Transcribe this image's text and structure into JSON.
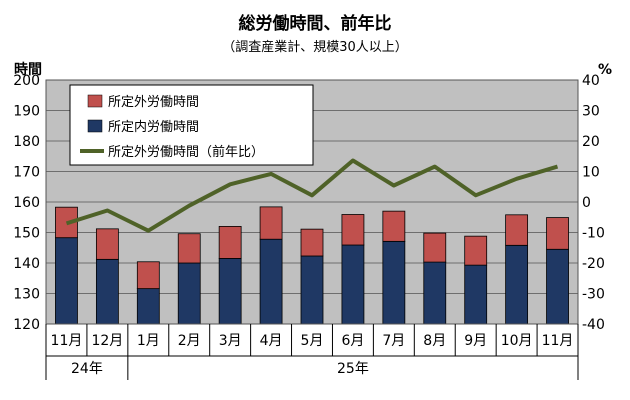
{
  "chart_data": {
    "type": "bar",
    "title": "総労働時間、前年比",
    "subtitle": "（調査産業計、規模30人以上）",
    "ylabel_left": "時間",
    "ylabel_right": "%",
    "ylim_left": [
      120,
      200
    ],
    "ylim_right": [
      -40,
      40
    ],
    "yticks_left": [
      "120",
      "130",
      "140",
      "150",
      "160",
      "170",
      "180",
      "190",
      "200"
    ],
    "yticks_right": [
      "-40",
      "-30",
      "-20",
      "-10",
      "0",
      "10",
      "20",
      "30",
      "40"
    ],
    "grid": true,
    "legend_position": "top-left",
    "categories": [
      "11月",
      "12月",
      "1月",
      "2月",
      "3月",
      "4月",
      "5月",
      "6月",
      "7月",
      "8月",
      "9月",
      "10月",
      "11月"
    ],
    "year_groups": [
      {
        "label": "24年",
        "span": 2
      },
      {
        "label": "25年",
        "span": 11
      }
    ],
    "series": [
      {
        "name": "所定外労働時間",
        "kind": "bar-stack-top",
        "axis": "left",
        "color": "#c0504d",
        "values": [
          10.0,
          10.0,
          8.8,
          9.6,
          10.5,
          10.6,
          8.8,
          10.0,
          9.9,
          9.5,
          9.5,
          10.0,
          10.4
        ]
      },
      {
        "name": "所定内労働時間",
        "kind": "bar-stack-bottom",
        "axis": "left",
        "color": "#1f3864",
        "values": [
          148.3,
          141.2,
          131.6,
          140.0,
          141.5,
          147.8,
          142.3,
          145.9,
          147.1,
          140.3,
          139.3,
          145.8,
          144.5
        ]
      },
      {
        "name": "所定外労働時間（前年比）",
        "kind": "line",
        "axis": "right",
        "color": "#4f6228",
        "values": [
          -7.0,
          -2.8,
          -9.4,
          -1.2,
          5.8,
          9.2,
          2.2,
          13.6,
          5.4,
          11.6,
          2.2,
          7.6,
          11.6
        ]
      }
    ]
  }
}
